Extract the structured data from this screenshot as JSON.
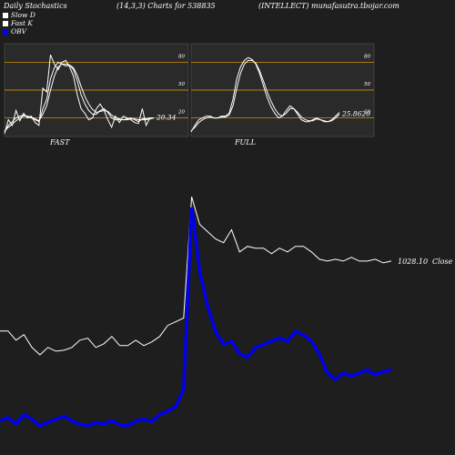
{
  "header": {
    "left": "Daily Stochastics",
    "center": "(14,3,3) Charts for 538835",
    "right": "(INTELLECT) munafasutra.tbojar.com"
  },
  "legend": [
    {
      "label": "Slow  D",
      "color": "#ffffff",
      "icon": "white-square"
    },
    {
      "label": "Fast K",
      "color": "#ffffff",
      "icon": "white-square"
    },
    {
      "label": "OBV",
      "color": "#0000ff",
      "icon": "blue-square"
    }
  ],
  "colors": {
    "background": "#1e1e1e",
    "panel_bg": "#2a2a2a",
    "level_line": "#b8860b",
    "stoch_line": "#ffffff",
    "price_line": "#ffffff",
    "obv_line": "#0000ee"
  },
  "chart_data": [
    {
      "type": "line",
      "panel": "FAST",
      "xlabel": "FAST",
      "ylim": [
        0,
        100
      ],
      "levels": [
        20,
        50,
        80
      ],
      "level_labels": [
        "20",
        "50",
        "80"
      ],
      "last_value_label": "20.34",
      "series": [
        {
          "values": [
            3,
            18,
            12,
            28,
            17,
            25,
            20,
            22,
            15,
            12,
            52,
            48,
            88,
            78,
            72,
            80,
            82,
            75,
            65,
            45,
            30,
            25,
            18,
            20,
            30,
            35,
            28,
            18,
            10,
            22,
            15,
            22,
            20,
            18,
            15,
            14,
            30,
            12,
            20,
            20
          ]
        },
        {
          "values": [
            5,
            12,
            16,
            20,
            22,
            23,
            21,
            20,
            18,
            16,
            30,
            40,
            62,
            74,
            80,
            78,
            76,
            77,
            72,
            60,
            45,
            35,
            28,
            24,
            24,
            28,
            30,
            26,
            20,
            18,
            18,
            18,
            19,
            20,
            18,
            16,
            19,
            19,
            20,
            20
          ]
        },
        {
          "values": [
            6,
            10,
            13,
            17,
            20,
            22,
            22,
            21,
            19,
            17,
            24,
            33,
            50,
            65,
            75,
            78,
            78,
            77,
            74,
            66,
            54,
            43,
            35,
            29,
            26,
            27,
            28,
            27,
            23,
            20,
            19,
            18,
            18,
            19,
            19,
            18,
            18,
            18,
            19,
            20
          ]
        }
      ]
    },
    {
      "type": "line",
      "panel": "FULL",
      "xlabel": "FULL",
      "ylim": [
        0,
        100
      ],
      "levels": [
        20,
        50,
        80
      ],
      "level_labels": [
        "20",
        "50",
        "80"
      ],
      "last_value_label": "25.8620",
      "series": [
        {
          "values": [
            5,
            12,
            18,
            20,
            22,
            22,
            20,
            20,
            22,
            22,
            25,
            40,
            62,
            75,
            82,
            85,
            83,
            78,
            68,
            55,
            42,
            32,
            25,
            20,
            22,
            28,
            33,
            30,
            24,
            18,
            16,
            16,
            18,
            20,
            18,
            16,
            16,
            18,
            22,
            26
          ]
        },
        {
          "values": [
            6,
            10,
            15,
            18,
            20,
            21,
            20,
            20,
            21,
            21,
            23,
            33,
            52,
            68,
            78,
            82,
            82,
            79,
            71,
            60,
            48,
            38,
            30,
            24,
            22,
            25,
            30,
            30,
            26,
            21,
            18,
            17,
            17,
            19,
            18,
            17,
            16,
            17,
            20,
            24
          ]
        }
      ]
    },
    {
      "type": "line",
      "panel": "price-obv",
      "last_value_label": "1028.10",
      "series_label": "Close",
      "series": [
        {
          "name": "Close",
          "values": [
            650,
            650,
            600,
            630,
            560,
            520,
            560,
            540,
            545,
            560,
            600,
            610,
            560,
            580,
            620,
            570,
            570,
            600,
            570,
            590,
            620,
            680,
            700,
            720,
            1380,
            1230,
            1190,
            1150,
            1130,
            1200,
            1080,
            1110,
            1100,
            1100,
            1070,
            1100,
            1080,
            1110,
            1110,
            1080,
            1040,
            1030,
            1040,
            1030,
            1050,
            1030,
            1030,
            1040,
            1020,
            1030
          ]
        },
        {
          "name": "OBV",
          "values": [
            50,
            60,
            40,
            70,
            55,
            35,
            45,
            55,
            65,
            50,
            40,
            35,
            45,
            40,
            50,
            38,
            35,
            50,
            55,
            48,
            70,
            80,
            95,
            150,
            720,
            520,
            410,
            330,
            290,
            300,
            260,
            250,
            280,
            290,
            300,
            310,
            300,
            330,
            320,
            300,
            260,
            200,
            180,
            200,
            190,
            200,
            210,
            195,
            205,
            210
          ]
        }
      ]
    }
  ]
}
